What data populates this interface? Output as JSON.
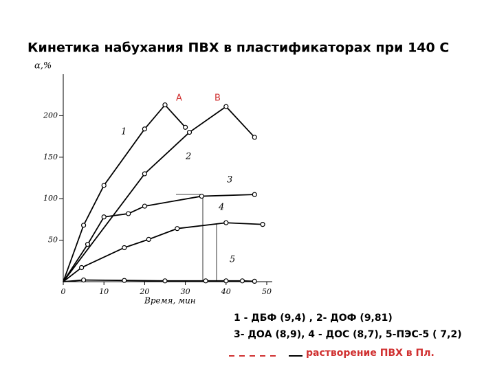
{
  "chart_data": {
    "type": "line",
    "title": "Кинетика набухания ПВХ   в пластификаторах  при  140 С",
    "y_label": "α,%",
    "x_label": "Время, мин",
    "xlim": [
      0,
      50
    ],
    "ylim": [
      0,
      250
    ],
    "xticks": [
      0,
      10,
      20,
      30,
      40,
      50
    ],
    "yticks": [
      50,
      100,
      150,
      200
    ],
    "series": [
      {
        "name": "1",
        "color": "#000000",
        "x": [
          5,
          10,
          20,
          25,
          30
        ],
        "values": [
          68,
          116,
          184,
          213,
          186
        ]
      },
      {
        "name": "2",
        "color": "#000000",
        "x": [
          20,
          31,
          40,
          47
        ],
        "values": [
          130,
          180,
          211,
          174
        ]
      },
      {
        "name": "3",
        "color": "#000000",
        "x": [
          6,
          10,
          16,
          20,
          34,
          47
        ],
        "values": [
          45,
          78,
          82,
          91,
          103,
          105
        ]
      },
      {
        "name": "4",
        "color": "#000000",
        "x": [
          4.5,
          15,
          21,
          28,
          40,
          49
        ],
        "values": [
          17,
          41,
          51,
          64,
          71,
          69
        ]
      },
      {
        "name": "5",
        "color": "#000000",
        "x": [
          5,
          15,
          25,
          35,
          40,
          44,
          47
        ],
        "values": [
          2,
          1.5,
          1,
          1,
          1,
          1,
          0.5
        ]
      }
    ],
    "annotations": [
      "A",
      "B"
    ],
    "notes": [
      "1 - ДБФ (9,4) ,  2- ДОФ (9,81)",
      "3- ДОА (8,9),    4 - ДОС (8,7), 5-ПЭС-5 ( 7,2)",
      "растворение  ПВХ в Пл."
    ]
  }
}
